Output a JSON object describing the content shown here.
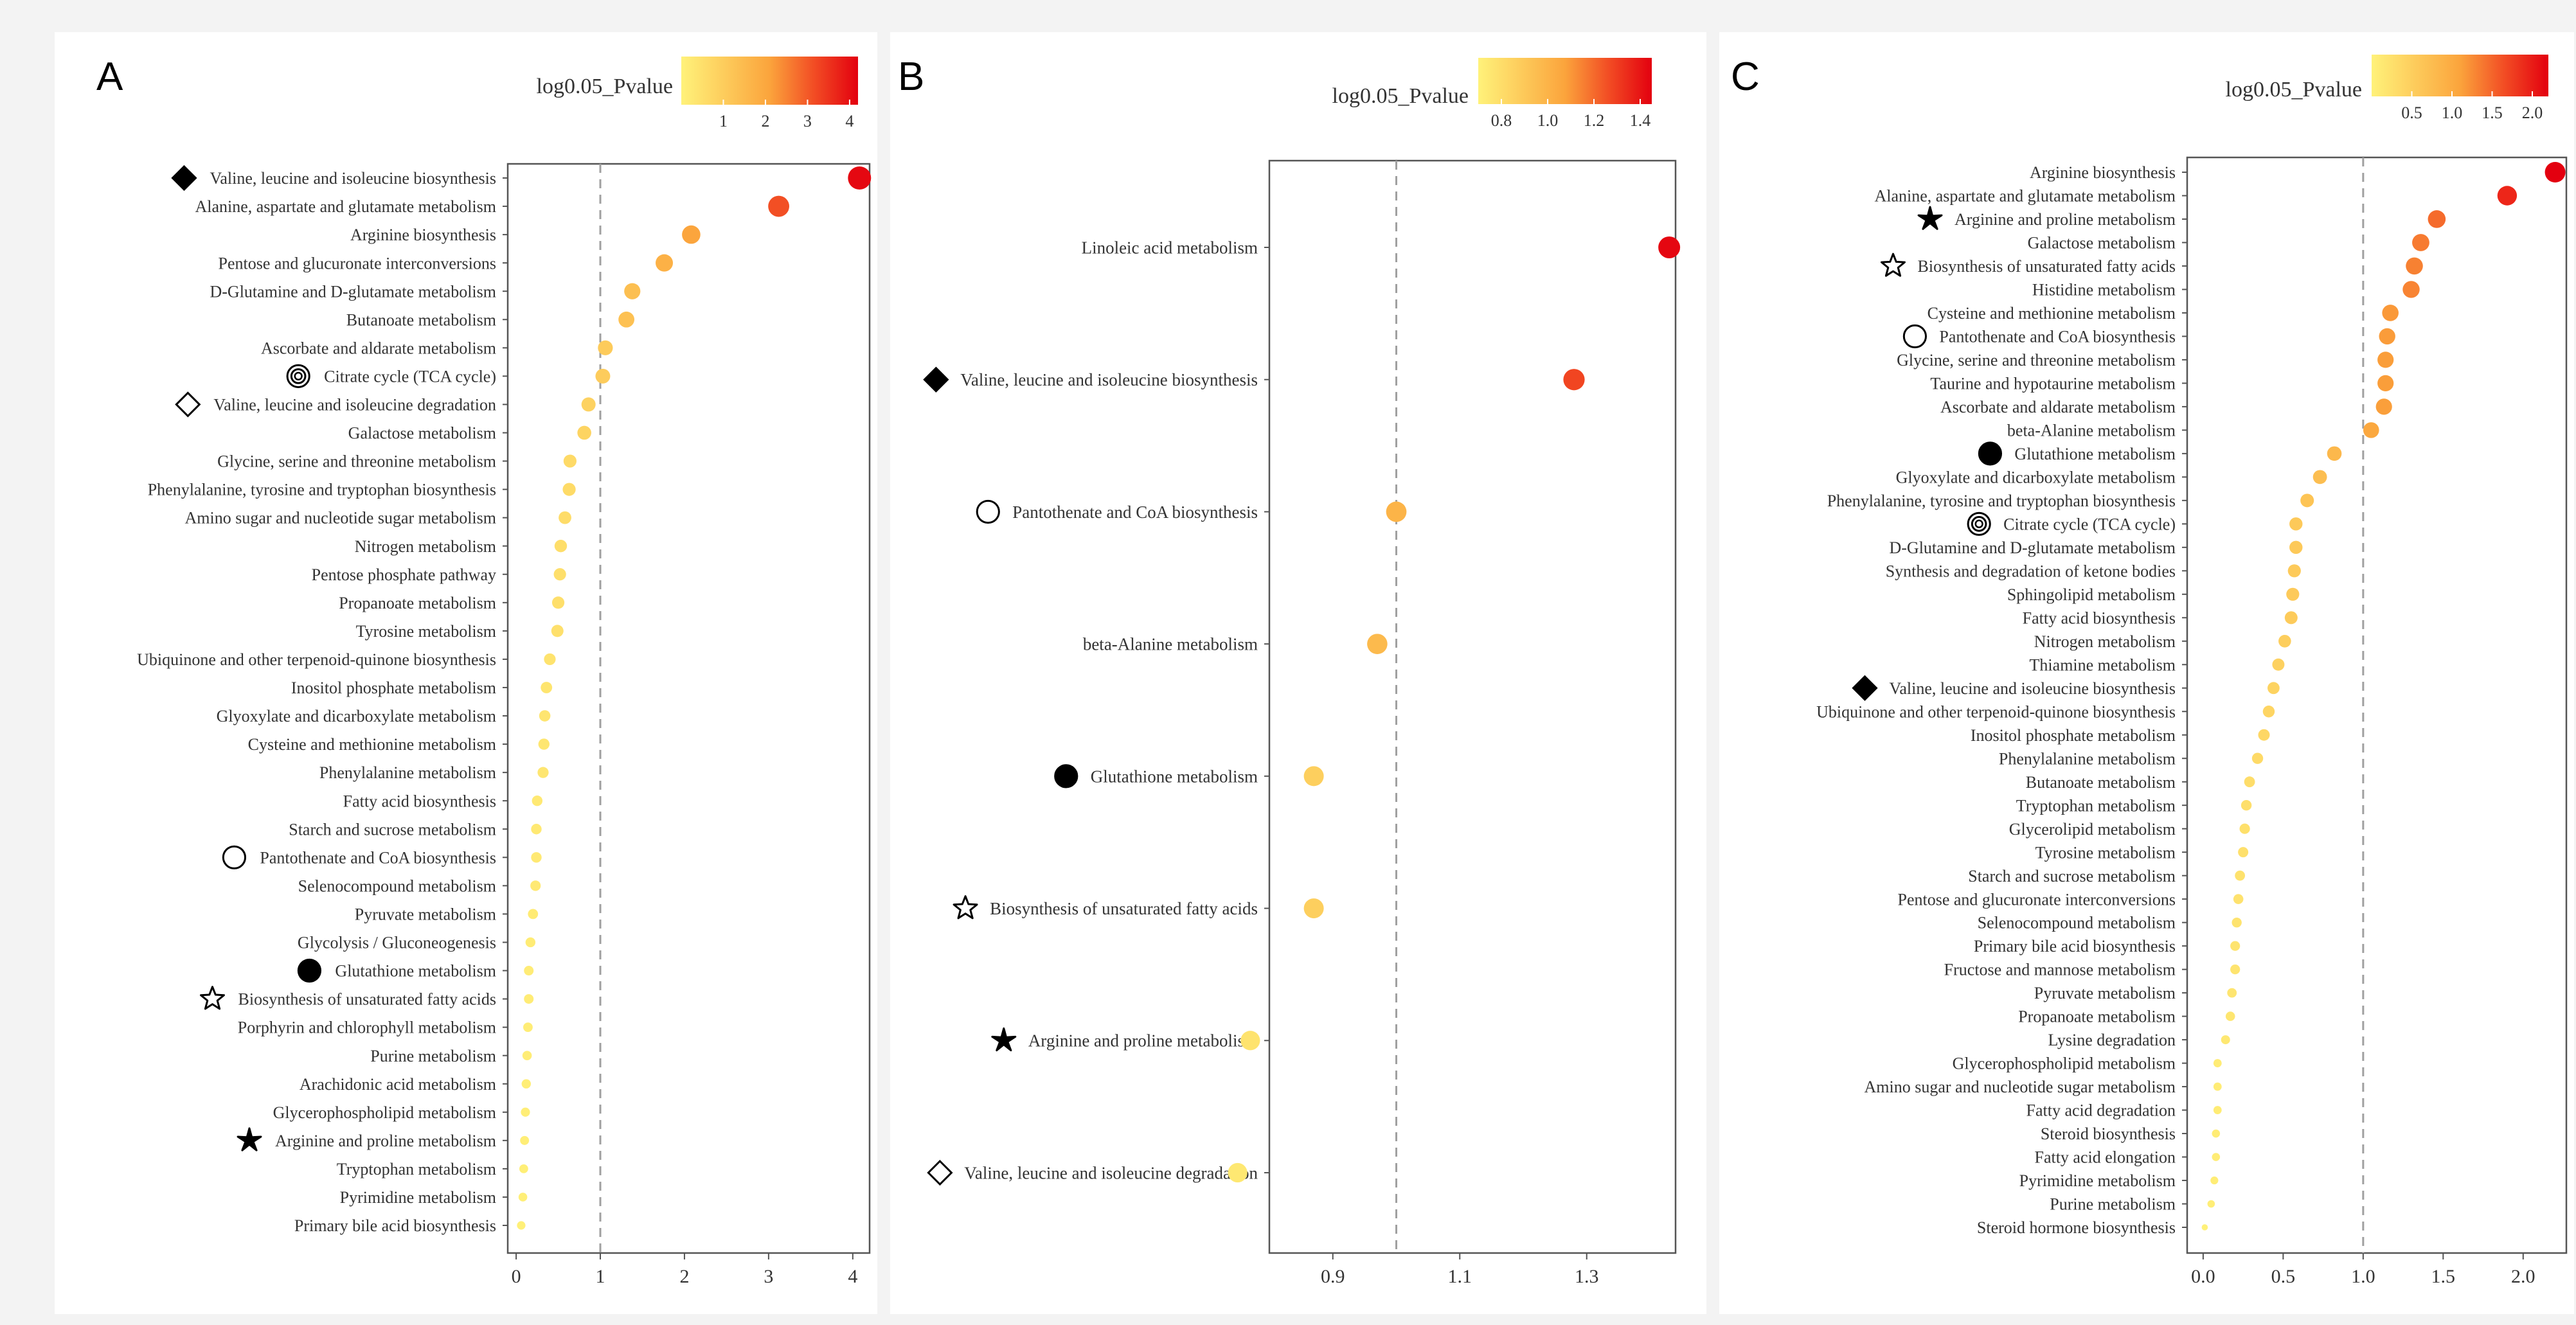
{
  "chart_data": [
    {
      "type": "scatter",
      "panel_label": "A",
      "legend_title": "log0.05_Pvalue",
      "legend_ticks": [
        "1",
        "2",
        "3",
        "4"
      ],
      "color_range": [
        0,
        4.2
      ],
      "xlim": [
        -0.1,
        4.2
      ],
      "xticks": [
        0,
        1,
        2,
        3,
        4
      ],
      "xtick_labels": [
        "0",
        "1",
        "2",
        "3",
        "4"
      ],
      "threshold": 1,
      "grid": false,
      "categories": [
        "Valine, leucine and isoleucine biosynthesis",
        "Alanine, aspartate and glutamate metabolism",
        "Arginine biosynthesis",
        "Pentose and glucuronate interconversions",
        "D-Glutamine and D-glutamate metabolism",
        "Butanoate metabolism",
        "Ascorbate and aldarate metabolism",
        "Citrate cycle (TCA cycle)",
        "Valine, leucine and isoleucine degradation",
        "Galactose metabolism",
        "Glycine, serine and threonine metabolism",
        "Phenylalanine, tyrosine and tryptophan biosynthesis",
        "Amino sugar and nucleotide sugar metabolism",
        "Nitrogen metabolism",
        "Pentose phosphate pathway",
        "Propanoate metabolism",
        "Tyrosine metabolism",
        "Ubiquinone and other terpenoid-quinone biosynthesis",
        "Inositol phosphate metabolism",
        "Glyoxylate and dicarboxylate metabolism",
        "Cysteine and methionine metabolism",
        "Phenylalanine metabolism",
        "Fatty acid biosynthesis",
        "Starch and sucrose metabolism",
        "Pantothenate and CoA biosynthesis",
        "Selenocompound metabolism",
        "Pyruvate metabolism",
        "Glycolysis / Gluconeogenesis",
        "Glutathione metabolism",
        "Biosynthesis of unsaturated fatty acids",
        "Porphyrin and chlorophyll metabolism",
        "Purine metabolism",
        "Arachidonic acid metabolism",
        "Glycerophospholipid metabolism",
        "Arginine and proline metabolism",
        "Tryptophan metabolism",
        "Pyrimidine metabolism",
        "Primary bile acid biosynthesis"
      ],
      "values": [
        4.08,
        3.12,
        2.08,
        1.76,
        1.38,
        1.31,
        1.06,
        1.03,
        0.86,
        0.81,
        0.64,
        0.63,
        0.58,
        0.53,
        0.52,
        0.5,
        0.49,
        0.4,
        0.36,
        0.34,
        0.33,
        0.32,
        0.25,
        0.24,
        0.24,
        0.23,
        0.2,
        0.17,
        0.15,
        0.15,
        0.14,
        0.13,
        0.12,
        0.11,
        0.1,
        0.09,
        0.08,
        0.06
      ],
      "markers": {
        "Valine, leucine and isoleucine biosynthesis": "diamond-filled",
        "Citrate cycle (TCA cycle)": "double-circle",
        "Valine, leucine and isoleucine degradation": "diamond-open",
        "Pantothenate and CoA biosynthesis": "circle-open",
        "Glutathione metabolism": "circle-filled",
        "Biosynthesis of unsaturated fatty acids": "star-open",
        "Arginine and proline metabolism": "star-filled"
      }
    },
    {
      "type": "scatter",
      "panel_label": "B",
      "legend_title": "log0.05_Pvalue",
      "legend_ticks": [
        "0.8",
        "1.0",
        "1.2",
        "1.4"
      ],
      "color_range": [
        0.7,
        1.45
      ],
      "xlim": [
        0.8,
        1.44
      ],
      "xticks": [
        0.9,
        1.1,
        1.3
      ],
      "xtick_labels": [
        "0.9",
        "1.1",
        "1.3"
      ],
      "threshold": 1.0,
      "grid": false,
      "categories": [
        "Linoleic acid metabolism",
        "Valine, leucine and isoleucine biosynthesis",
        "Pantothenate and CoA biosynthesis",
        "beta-Alanine metabolism",
        "Glutathione metabolism",
        "Biosynthesis of unsaturated fatty acids",
        "Arginine and proline metabolism",
        "Valine, leucine and isoleucine degradation"
      ],
      "values": [
        1.43,
        1.28,
        1.0,
        0.97,
        0.87,
        0.87,
        0.77,
        0.75
      ],
      "markers": {
        "Valine, leucine and isoleucine biosynthesis": "diamond-filled",
        "Pantothenate and CoA biosynthesis": "circle-open",
        "Glutathione metabolism": "circle-filled",
        "Biosynthesis of unsaturated fatty acids": "star-open",
        "Arginine and proline metabolism": "star-filled",
        "Valine, leucine and isoleucine degradation": "diamond-open"
      }
    },
    {
      "type": "scatter",
      "panel_label": "C",
      "legend_title": "log0.05_Pvalue",
      "legend_ticks": [
        "0.5",
        "1.0",
        "1.5",
        "2.0"
      ],
      "color_range": [
        0,
        2.2
      ],
      "xlim": [
        -0.1,
        2.27
      ],
      "xticks": [
        0,
        0.5,
        1,
        1.5,
        2
      ],
      "xtick_labels": [
        "0.0",
        "0.5",
        "1.0",
        "1.5",
        "2.0"
      ],
      "threshold": 1,
      "grid": false,
      "categories": [
        "Arginine biosynthesis",
        "Alanine, aspartate and glutamate metabolism",
        "Arginine and proline metabolism",
        "Galactose metabolism",
        "Biosynthesis of unsaturated fatty acids",
        "Histidine metabolism",
        "Cysteine and methionine metabolism",
        "Pantothenate and CoA biosynthesis",
        "Glycine, serine and threonine metabolism",
        "Taurine and hypotaurine metabolism",
        "Ascorbate and aldarate metabolism",
        "beta-Alanine metabolism",
        "Glutathione metabolism",
        "Glyoxylate and dicarboxylate metabolism",
        "Phenylalanine, tyrosine and tryptophan biosynthesis",
        "Citrate cycle (TCA cycle)",
        "D-Glutamine and D-glutamate metabolism",
        "Synthesis and degradation of ketone bodies",
        "Sphingolipid metabolism",
        "Fatty acid biosynthesis",
        "Nitrogen metabolism",
        "Thiamine metabolism",
        "Valine, leucine and isoleucine biosynthesis",
        "Ubiquinone and other terpenoid-quinone biosynthesis",
        "Inositol phosphate metabolism",
        "Phenylalanine metabolism",
        "Butanoate metabolism",
        "Tryptophan metabolism",
        "Glycerolipid metabolism",
        "Tyrosine metabolism",
        "Starch and sucrose metabolism",
        "Pentose and glucuronate interconversions",
        "Selenocompound metabolism",
        "Primary bile acid biosynthesis",
        "Fructose and mannose metabolism",
        "Pyruvate metabolism",
        "Propanoate metabolism",
        "Lysine degradation",
        "Glycerophospholipid metabolism",
        "Amino sugar and nucleotide sugar metabolism",
        "Fatty acid degradation",
        "Steroid biosynthesis",
        "Fatty acid elongation",
        "Pyrimidine metabolism",
        "Purine metabolism",
        "Steroid hormone biosynthesis"
      ],
      "values": [
        2.2,
        1.9,
        1.46,
        1.36,
        1.32,
        1.3,
        1.17,
        1.15,
        1.14,
        1.14,
        1.13,
        1.05,
        0.82,
        0.73,
        0.65,
        0.58,
        0.58,
        0.57,
        0.56,
        0.55,
        0.51,
        0.47,
        0.44,
        0.41,
        0.38,
        0.34,
        0.29,
        0.27,
        0.26,
        0.25,
        0.23,
        0.22,
        0.21,
        0.2,
        0.2,
        0.18,
        0.17,
        0.14,
        0.09,
        0.09,
        0.09,
        0.08,
        0.08,
        0.07,
        0.05,
        0.01
      ],
      "markers": {
        "Arginine and proline metabolism": "star-filled",
        "Biosynthesis of unsaturated fatty acids": "star-open",
        "Pantothenate and CoA biosynthesis": "circle-open",
        "Glutathione metabolism": "circle-filled",
        "Citrate cycle (TCA cycle)": "double-circle",
        "Valine, leucine and isoleucine biosynthesis": "diamond-filled"
      }
    }
  ],
  "colors": {
    "low": "#fff27a",
    "mid": "#fba43c",
    "high": "#ee2a1a",
    "top": "#e3000f",
    "threshold_line": "#a0a0a0",
    "axis": "#555555"
  }
}
